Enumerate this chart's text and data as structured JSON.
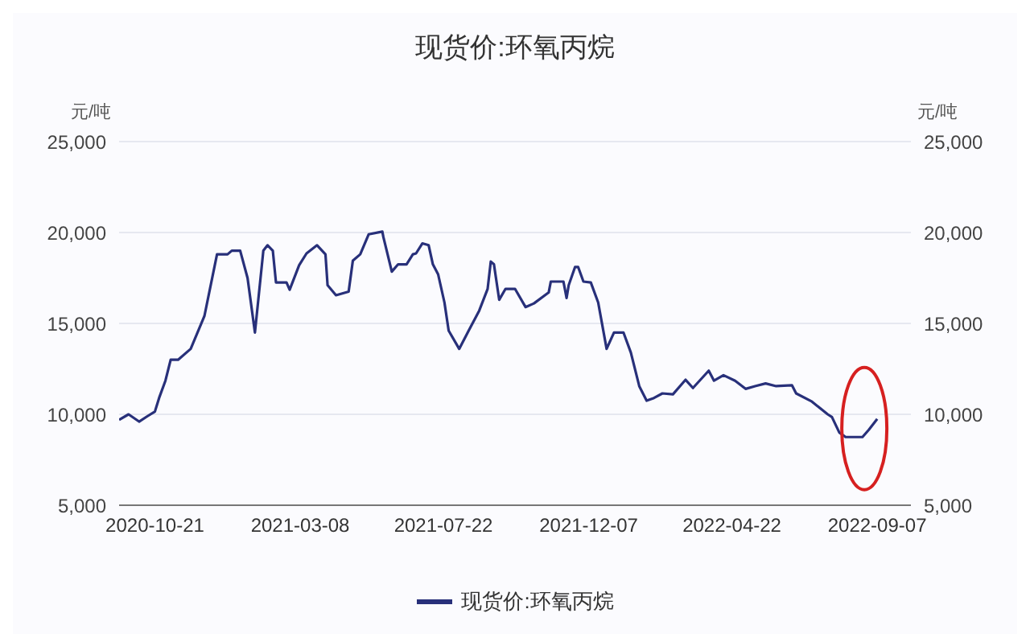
{
  "chart_data": {
    "type": "line",
    "title": "现货价:环氧丙烷",
    "ylabel": "元/吨",
    "y2label": "元/吨",
    "x": [
      "2020-09-17",
      "2020-09-26",
      "2020-10-06",
      "2020-10-14",
      "2020-10-21",
      "2020-10-25",
      "2020-10-31",
      "2020-11-05",
      "2020-11-12",
      "2020-11-24",
      "2020-12-07",
      "2020-12-19",
      "2020-12-29",
      "2021-01-02",
      "2021-01-10",
      "2021-01-17",
      "2021-01-24",
      "2021-02-01",
      "2021-02-05",
      "2021-02-10",
      "2021-02-13",
      "2021-02-23",
      "2021-02-26",
      "2021-03-07",
      "2021-03-14",
      "2021-03-24",
      "2021-04-01",
      "2021-04-03",
      "2021-04-11",
      "2021-04-23",
      "2021-04-27",
      "2021-05-04",
      "2021-05-12",
      "2021-05-25",
      "2021-05-26",
      "2021-06-03",
      "2021-06-09",
      "2021-06-17",
      "2021-06-23",
      "2021-06-26",
      "2021-07-02",
      "2021-07-08",
      "2021-07-12",
      "2021-07-17",
      "2021-07-23",
      "2021-07-27",
      "2021-08-06",
      "2021-08-15",
      "2021-08-25",
      "2021-09-02",
      "2021-09-05",
      "2021-09-08",
      "2021-09-13",
      "2021-09-19",
      "2021-09-28",
      "2021-10-08",
      "2021-10-16",
      "2021-10-30",
      "2021-11-01",
      "2021-11-13",
      "2021-11-16",
      "2021-11-18",
      "2021-11-24",
      "2021-11-27",
      "2021-12-02",
      "2021-12-09",
      "2021-12-16",
      "2021-12-24",
      "2021-12-31",
      "2022-01-09",
      "2022-01-16",
      "2022-01-24",
      "2022-01-31",
      "2022-02-07",
      "2022-02-15",
      "2022-02-25",
      "2022-03-09",
      "2022-03-16",
      "2022-03-31",
      "2022-04-05",
      "2022-04-14",
      "2022-04-25",
      "2022-05-05",
      "2022-05-14",
      "2022-05-24",
      "2022-06-03",
      "2022-06-18",
      "2022-06-22",
      "2022-07-07",
      "2022-07-22",
      "2022-07-26",
      "2022-08-02",
      "2022-08-08",
      "2022-08-24",
      "2022-08-30",
      "2022-09-07"
    ],
    "series": [
      {
        "name": "现货价:环氧丙烷",
        "color": "#28307a",
        "values": [
          9700,
          10000,
          9600,
          9900,
          10150,
          10900,
          11850,
          13000,
          13000,
          13600,
          15400,
          18800,
          18800,
          19000,
          19000,
          17500,
          14500,
          19000,
          19300,
          19000,
          17250,
          17250,
          16850,
          18200,
          18850,
          19300,
          18800,
          17100,
          16550,
          16750,
          18450,
          18800,
          19900,
          20050,
          19750,
          17850,
          18250,
          18250,
          18800,
          18850,
          19400,
          19300,
          18250,
          17700,
          16150,
          14600,
          13600,
          14600,
          15700,
          16900,
          18400,
          18250,
          16300,
          16900,
          16900,
          15900,
          16100,
          16700,
          17300,
          17300,
          16400,
          17100,
          18100,
          18100,
          17300,
          17250,
          16150,
          13600,
          14500,
          14500,
          13400,
          11550,
          10750,
          10900,
          11150,
          11100,
          11900,
          11450,
          12400,
          11850,
          12150,
          11850,
          11400,
          11550,
          11700,
          11550,
          11600,
          11150,
          10700,
          10000,
          9850,
          9000,
          8750,
          8750,
          9150,
          9750
        ]
      }
    ],
    "xlim": [
      "2020-09-17",
      "2022-10-09"
    ],
    "xticks": [
      "2020-10-21",
      "2021-03-08",
      "2021-07-22",
      "2021-12-07",
      "2022-04-22",
      "2022-09-07"
    ],
    "ylim": [
      5000,
      25000
    ],
    "yticks": [
      {
        "value": 5000,
        "label": "5,000"
      },
      {
        "value": 10000,
        "label": "10,000"
      },
      {
        "value": 15000,
        "label": "15,000"
      },
      {
        "value": 20000,
        "label": "20,000"
      },
      {
        "value": 25000,
        "label": "25,000"
      }
    ],
    "y2lim": [
      5000,
      25000
    ],
    "y2ticks": [
      {
        "value": 5000,
        "label": "5,000"
      },
      {
        "value": 10000,
        "label": "10,000"
      },
      {
        "value": 15000,
        "label": "15,000"
      },
      {
        "value": 20000,
        "label": "20,000"
      },
      {
        "value": 25000,
        "label": "25,000"
      }
    ],
    "grid": "y",
    "legend": "bottom",
    "marker": "none",
    "line_style": "solid"
  }
}
